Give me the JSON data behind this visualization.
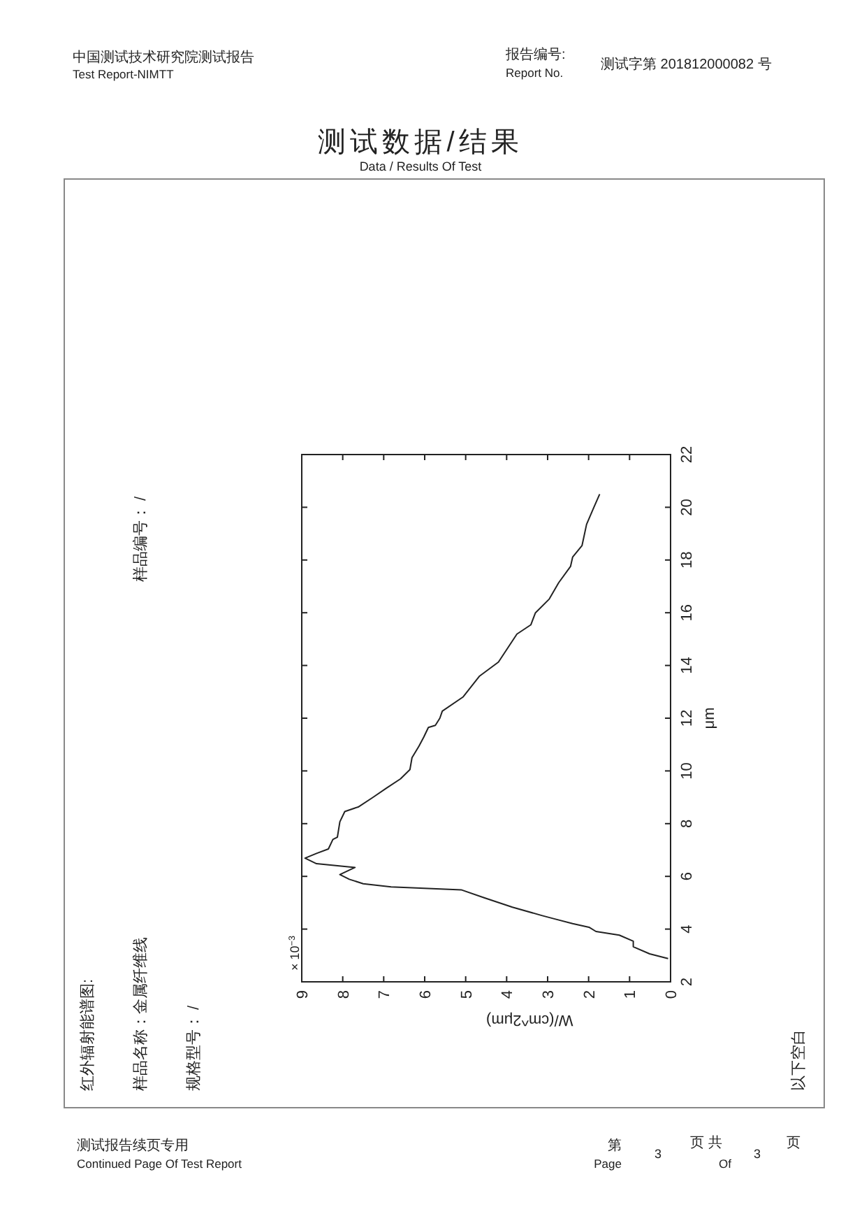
{
  "chart_data": {
    "type": "line",
    "title": "测试数据/结果",
    "subtitle": "Data / Results Of Test",
    "xlabel": "W/(cm^2μm)",
    "ylabel": "μm",
    "xlim": [
      9,
      0
    ],
    "xticks": [
      0,
      1,
      2,
      3,
      4,
      5,
      6,
      7,
      8,
      9
    ],
    "ylim": [
      2,
      22
    ],
    "yticks": [
      2,
      4,
      6,
      8,
      10,
      12,
      14,
      16,
      18,
      20,
      22
    ],
    "grid": false,
    "marker": "none",
    "line_style": "solid",
    "series": [
      {
        "color": "#222222",
        "x": [
          0.06,
          0.51,
          0.91,
          0.91,
          1.25,
          1.82,
          1.99,
          2.39,
          2.84,
          3.13,
          3.86,
          4.55,
          5.11,
          6.82,
          7.5,
          7.84,
          8.07,
          7.7,
          8.64,
          8.92,
          8.64,
          8.35,
          8.24,
          8.13,
          8.07,
          7.95,
          7.61,
          7.27,
          6.93,
          6.59,
          6.36,
          6.31,
          6.14,
          6.02,
          5.91,
          5.74,
          5.63,
          5.57,
          5.06,
          4.66,
          4.2,
          3.75,
          3.41,
          3.3,
          2.96,
          2.73,
          2.44,
          2.39,
          2.16,
          2.05,
          1.88,
          1.73
        ],
        "values": [
          2.88,
          3.06,
          3.33,
          3.54,
          3.77,
          3.91,
          4.07,
          4.21,
          4.39,
          4.51,
          4.83,
          5.19,
          5.49,
          5.6,
          5.72,
          5.89,
          6.07,
          6.34,
          6.48,
          6.69,
          6.87,
          7.04,
          7.4,
          7.49,
          8.07,
          8.46,
          8.64,
          8.99,
          9.35,
          9.7,
          10.05,
          10.5,
          10.94,
          11.29,
          11.65,
          11.73,
          12.0,
          12.27,
          12.81,
          13.6,
          14.13,
          15.19,
          15.54,
          15.99,
          16.52,
          17.14,
          17.76,
          18.11,
          18.55,
          19.35,
          19.97,
          20.5
        ]
      }
    ],
    "annotations": [
      "× 10$^{−3}$",
      "中国测试技术研究院测试报告",
      "Test Report-NIMTT",
      "报告编号:",
      "Report No.",
      "测试字第 201812000082 号",
      "红外辐射能谱图:",
      "样品名称：金属纤维线",
      "规格型号： /",
      "样品编号： /",
      "以下空白",
      "测试报告续页专用",
      "Continued Page Of Test Report",
      "第",
      "Page",
      "3",
      "页 共",
      "Of",
      "3",
      "页"
    ]
  }
}
